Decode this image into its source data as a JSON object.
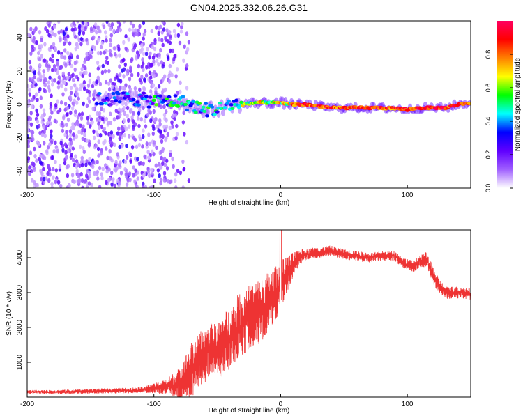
{
  "figure_title": "GN04.2025.332.06.26.G31",
  "chart_data": [
    {
      "type": "heatmap",
      "title": "GN04.2025.332.06.26.G31",
      "xlabel": "Height of straight line (km)",
      "ylabel": "Frequency (Hz)",
      "xlim": [
        -200,
        150
      ],
      "ylim": [
        -50,
        50
      ],
      "x_ticks": [
        -200,
        -100,
        0,
        100
      ],
      "y_ticks": [
        -40,
        -20,
        0,
        20,
        40
      ],
      "colorbar": {
        "label": "Normalized spectral amplitude",
        "range": [
          0,
          1
        ],
        "ticks": [
          0.0,
          0.2,
          0.4,
          0.6,
          0.8
        ],
        "tick_labels": [
          "0.0",
          "0.2",
          "0.4",
          "0.6",
          "0.8"
        ],
        "colors": [
          "#ffffff",
          "#a060ff",
          "#6000ff",
          "#0000ff",
          "#00ffff",
          "#00ff00",
          "#ffff00",
          "#ff8000",
          "#ff0000",
          "#ff0060"
        ]
      },
      "trace_center": {
        "x": [
          -200,
          -140,
          -120,
          -100,
          -80,
          -60,
          -50,
          -40,
          -30,
          -20,
          -10,
          0,
          10,
          20,
          40,
          60,
          80,
          100,
          110,
          120,
          130,
          140,
          150
        ],
        "y": [
          3,
          3,
          4,
          2,
          2,
          -3,
          -3,
          0,
          0,
          1,
          1,
          1,
          0,
          0,
          -2,
          -2,
          -2,
          -3,
          -2,
          -2,
          -2,
          0,
          1
        ]
      },
      "noise_region_x": [
        -200,
        -80
      ],
      "strong_signal_region_x": [
        10,
        150
      ]
    },
    {
      "type": "line",
      "xlabel": "Height of straight line (km)",
      "ylabel": "SNR (10 * v/v)",
      "xlim": [
        -200,
        150
      ],
      "ylim": [
        0,
        4800
      ],
      "x_ticks": [
        -200,
        -100,
        0,
        100
      ],
      "y_ticks": [
        1000,
        2000,
        3000,
        4000
      ],
      "series": [
        {
          "name": "SNR",
          "color": "#ee3333",
          "x": [
            -200,
            -180,
            -160,
            -140,
            -120,
            -110,
            -100,
            -90,
            -80,
            -75,
            -70,
            -65,
            -60,
            -55,
            -50,
            -45,
            -40,
            -35,
            -30,
            -25,
            -20,
            -15,
            -10,
            -5,
            0,
            5,
            10,
            15,
            20,
            30,
            40,
            50,
            60,
            70,
            80,
            90,
            95,
            100,
            105,
            110,
            115,
            120,
            125,
            130,
            140,
            150
          ],
          "values": [
            150,
            150,
            160,
            180,
            190,
            210,
            250,
            300,
            400,
            600,
            800,
            1000,
            1200,
            1400,
            1300,
            1500,
            1700,
            1900,
            2100,
            2300,
            2400,
            2500,
            2700,
            2900,
            3200,
            3500,
            3800,
            4000,
            4100,
            4150,
            4200,
            4100,
            4050,
            4000,
            4050,
            4050,
            3900,
            3800,
            3750,
            3900,
            3950,
            3500,
            3200,
            3000,
            3000,
            2950
          ],
          "spread": [
            60,
            60,
            70,
            80,
            90,
            100,
            150,
            250,
            500,
            700,
            900,
            900,
            900,
            800,
            900,
            1000,
            1000,
            1100,
            1100,
            1000,
            1100,
            1000,
            1000,
            900,
            800,
            600,
            400,
            250,
            200,
            180,
            170,
            160,
            160,
            160,
            150,
            160,
            180,
            180,
            180,
            180,
            250,
            300,
            220,
            200,
            200,
            200
          ]
        }
      ]
    }
  ]
}
